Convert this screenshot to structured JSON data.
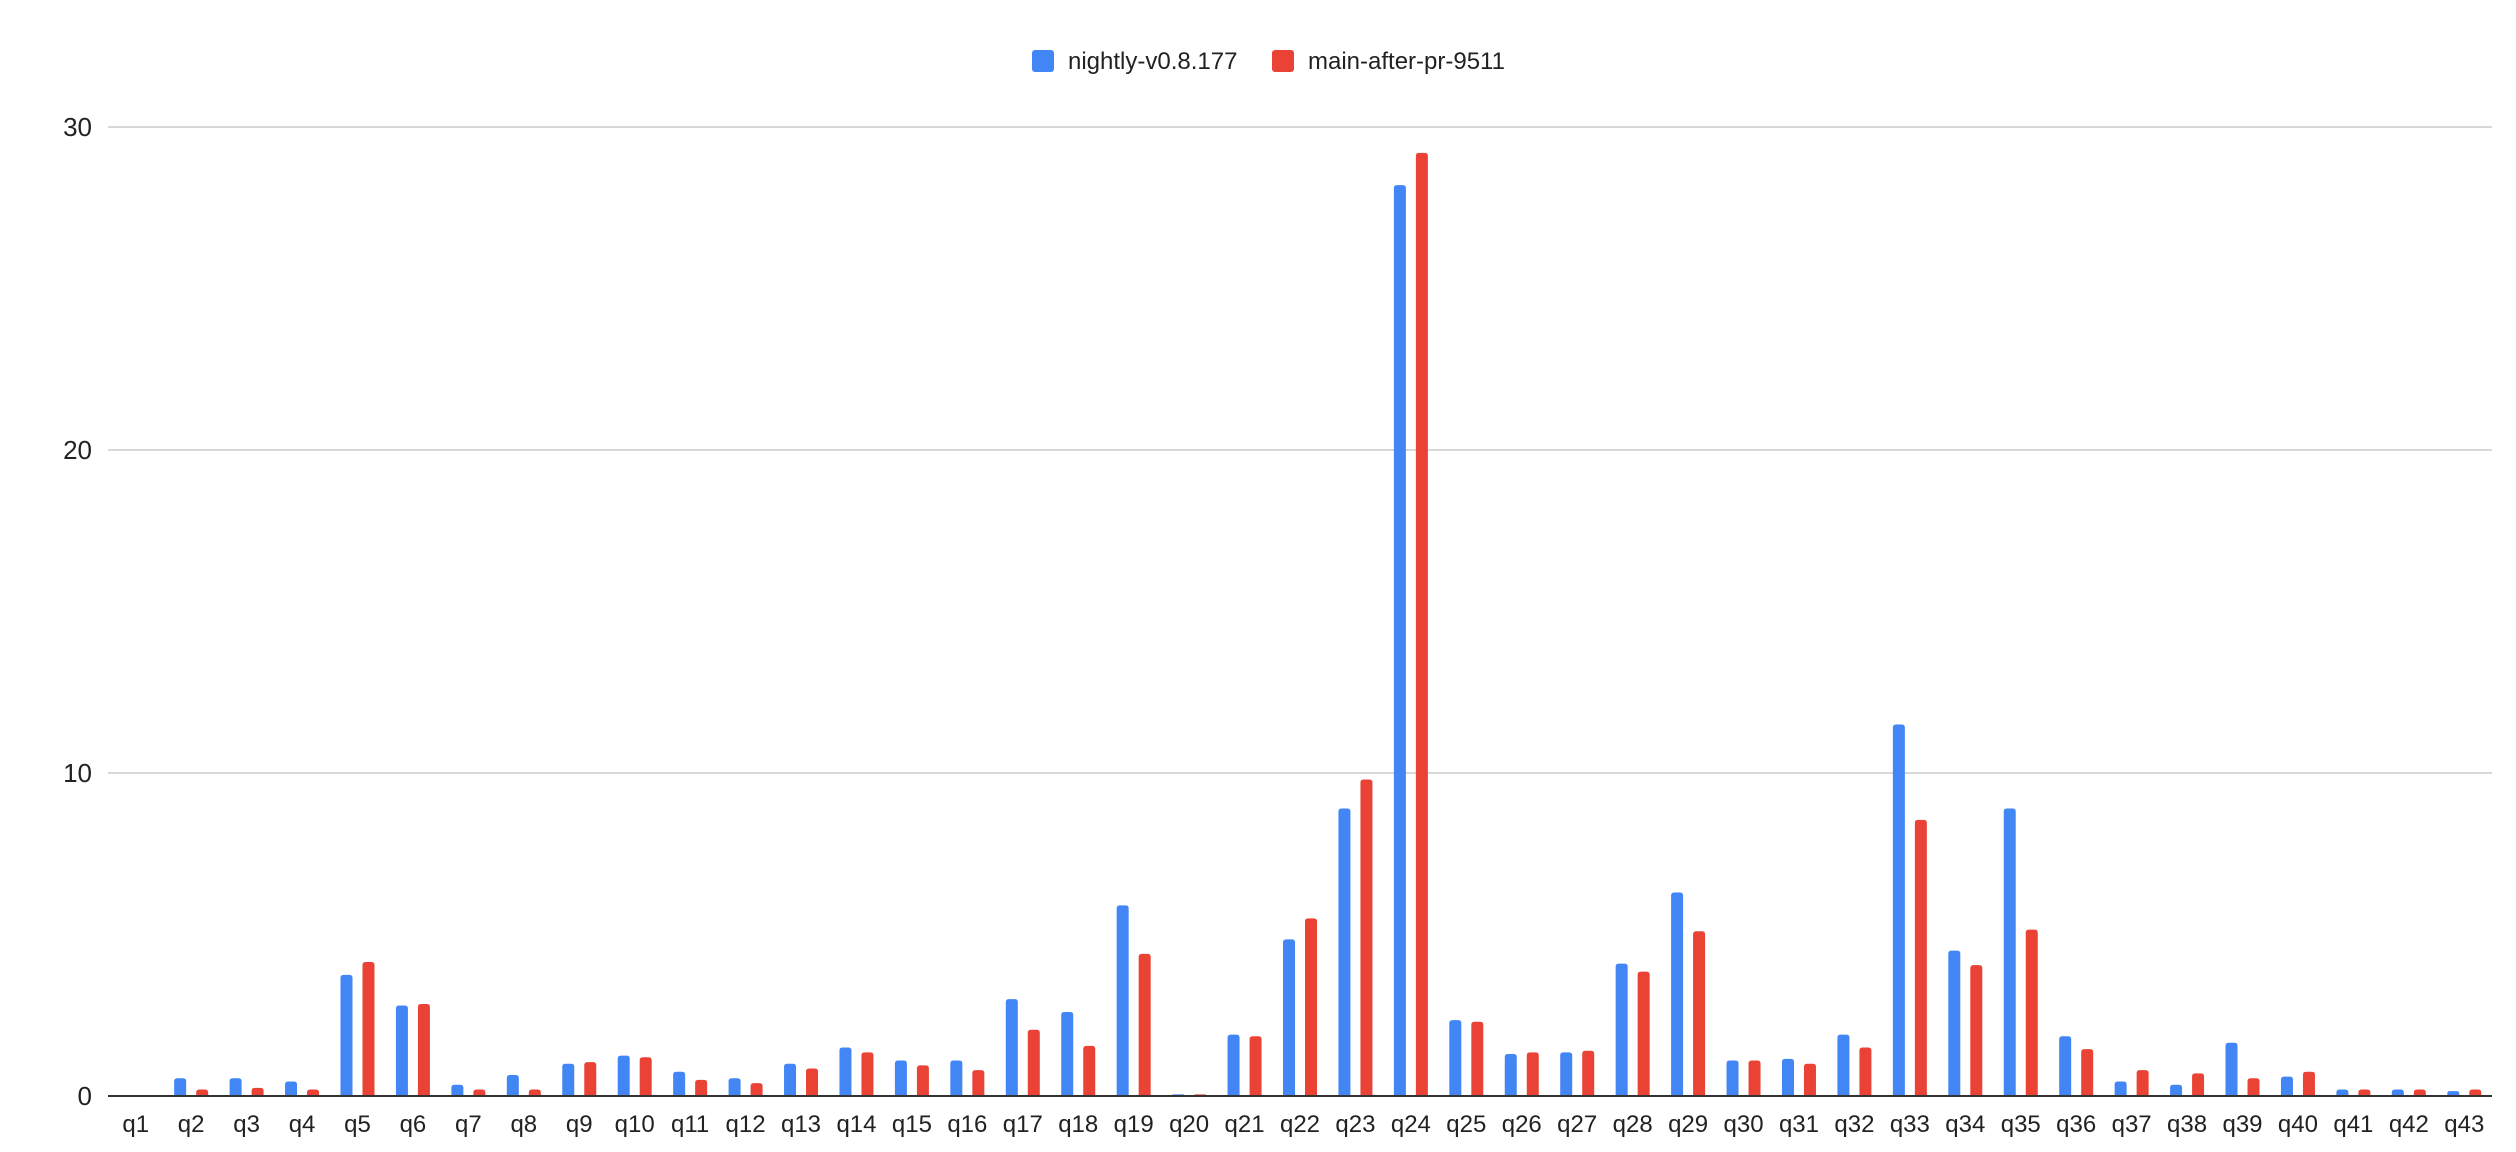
{
  "chart_data": {
    "type": "bar",
    "title": "",
    "xlabel": "",
    "ylabel": "",
    "ylim": [
      0,
      30
    ],
    "yticks": [
      0,
      10,
      20,
      30
    ],
    "grid": true,
    "legend_position": "top-center",
    "categories": [
      "q1",
      "q2",
      "q3",
      "q4",
      "q5",
      "q6",
      "q7",
      "q8",
      "q9",
      "q10",
      "q11",
      "q12",
      "q13",
      "q14",
      "q15",
      "q16",
      "q17",
      "q18",
      "q19",
      "q20",
      "q21",
      "q22",
      "q23",
      "q24",
      "q25",
      "q26",
      "q27",
      "q28",
      "q29",
      "q30",
      "q31",
      "q32",
      "q33",
      "q34",
      "q35",
      "q36",
      "q37",
      "q38",
      "q39",
      "q40",
      "q41",
      "q42",
      "q43"
    ],
    "series": [
      {
        "name": "nightly-v0.8.177",
        "color": "#4285f4",
        "values": [
          0,
          0.55,
          0.55,
          0.45,
          3.75,
          2.8,
          0.35,
          0.65,
          1.0,
          1.25,
          0.75,
          0.55,
          1.0,
          1.5,
          1.1,
          1.1,
          3.0,
          2.6,
          5.9,
          0.05,
          1.9,
          4.85,
          8.9,
          28.2,
          2.35,
          1.3,
          1.35,
          4.1,
          6.3,
          1.1,
          1.15,
          1.9,
          11.5,
          4.5,
          8.9,
          1.85,
          0.45,
          0.35,
          1.65,
          0.6,
          0.2,
          0.2,
          0.15
        ]
      },
      {
        "name": "main-after-pr-9511",
        "color": "#ea4335",
        "values": [
          0,
          0.2,
          0.25,
          0.2,
          4.15,
          2.85,
          0.2,
          0.2,
          1.05,
          1.2,
          0.5,
          0.4,
          0.85,
          1.35,
          0.95,
          0.8,
          2.05,
          1.55,
          4.4,
          0.05,
          1.85,
          5.5,
          9.8,
          29.2,
          2.3,
          1.35,
          1.4,
          3.85,
          5.1,
          1.1,
          1.0,
          1.5,
          8.55,
          4.05,
          5.15,
          1.45,
          0.8,
          0.7,
          0.55,
          0.75,
          0.2,
          0.2,
          0.2
        ]
      }
    ]
  }
}
